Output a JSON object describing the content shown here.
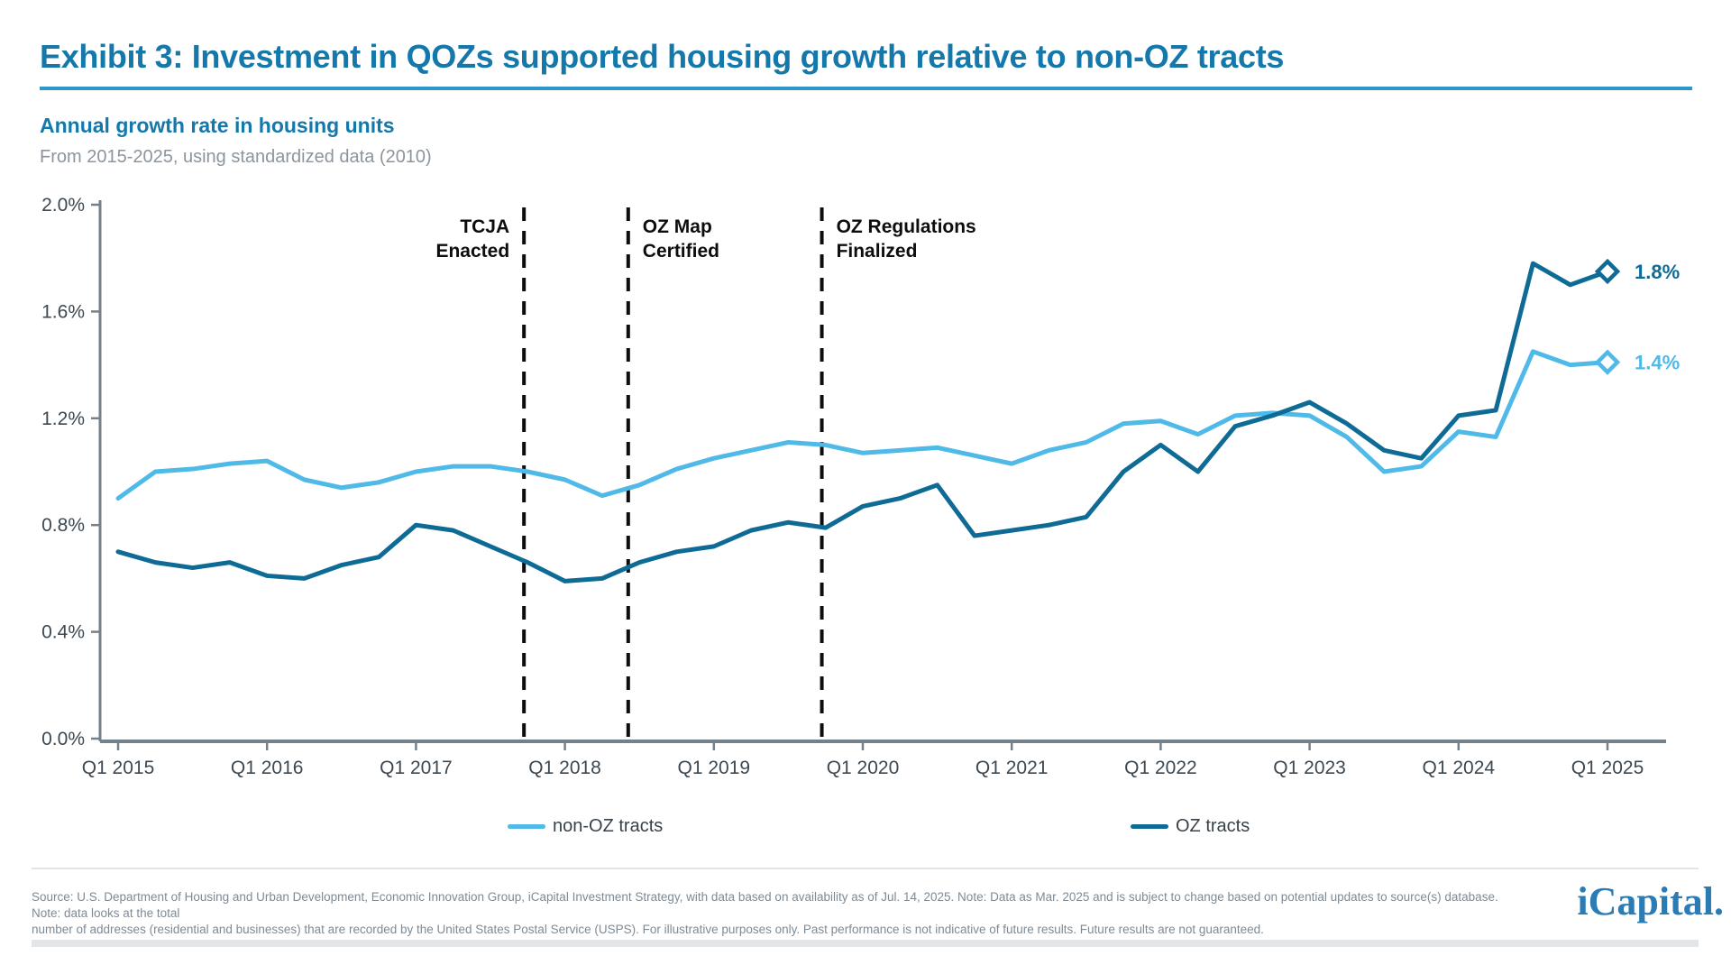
{
  "header": {
    "title": "Exhibit 3: Investment in QOZs supported housing growth relative to non-OZ tracts",
    "subtitle": "Annual growth rate in housing units",
    "period_note": "From 2015-2025, using standardized data (2010)"
  },
  "chart_data": {
    "type": "line",
    "title": "Annual growth rate in housing units",
    "x_start": "Q1 2015",
    "x_end": "Q1 2025",
    "frequency": "quarterly",
    "ylim": [
      0,
      2.0
    ],
    "y_unit": "%",
    "grid": "off",
    "legend_position": "bottom",
    "x_tick_labels": [
      "Q1 2015",
      "Q1 2016",
      "Q1 2017",
      "Q1 2018",
      "Q1 2019",
      "Q1 2020",
      "Q1 2021",
      "Q1 2022",
      "Q1 2023",
      "Q1 2024",
      "Q1 2025"
    ],
    "y_tick_labels": [
      "0.0%",
      "0.4%",
      "0.8%",
      "1.2%",
      "1.6%",
      "2.0%"
    ],
    "series": [
      {
        "name": "non-OZ tracts",
        "color": "#4FB9E8",
        "end_label": "1.4%",
        "values": [
          0.9,
          1.0,
          1.01,
          1.03,
          1.04,
          0.97,
          0.94,
          0.96,
          1.0,
          1.02,
          1.02,
          1.0,
          0.97,
          0.91,
          0.95,
          1.01,
          1.05,
          1.08,
          1.11,
          1.1,
          1.07,
          1.08,
          1.09,
          1.06,
          1.03,
          1.08,
          1.11,
          1.18,
          1.19,
          1.14,
          1.21,
          1.22,
          1.21,
          1.13,
          1.0,
          1.02,
          1.15,
          1.13,
          1.45,
          1.4,
          1.41
        ]
      },
      {
        "name": "OZ tracts",
        "color": "#0E6B95",
        "end_label": "1.8%",
        "values": [
          0.7,
          0.66,
          0.64,
          0.66,
          0.61,
          0.6,
          0.65,
          0.68,
          0.8,
          0.78,
          0.72,
          0.66,
          0.59,
          0.6,
          0.66,
          0.7,
          0.72,
          0.78,
          0.81,
          0.79,
          0.87,
          0.9,
          0.95,
          0.76,
          0.78,
          0.8,
          0.83,
          1.0,
          1.1,
          1.0,
          1.17,
          1.21,
          1.26,
          1.18,
          1.08,
          1.05,
          1.21,
          1.23,
          1.78,
          1.7,
          1.75
        ]
      }
    ],
    "events": [
      {
        "label_line1": "TCJA",
        "label_line2": "Enacted",
        "x_quarter_index": 10.9,
        "align": "right"
      },
      {
        "label_line1": "OZ Map",
        "label_line2": "Certified",
        "x_quarter_index": 13.7,
        "align": "left"
      },
      {
        "label_line1": "OZ Regulations",
        "label_line2": "Finalized",
        "x_quarter_index": 18.9,
        "align": "left"
      }
    ]
  },
  "footer": {
    "source_line1": "Source: U.S. Department of Housing and Urban Development, Economic Innovation Group, iCapital Investment Strategy, with data based on availability as of Jul. 14, 2025. Note: Data as Mar. 2025 and is subject to change based on potential updates to source(s) database. Note: data looks at the total",
    "source_line2": "number of addresses (residential and businesses) that are recorded by the United States Postal Service (USPS). For illustrative purposes only. Past performance is not indicative of future results. Future results are not guaranteed.",
    "logo_text": "iCapital."
  }
}
